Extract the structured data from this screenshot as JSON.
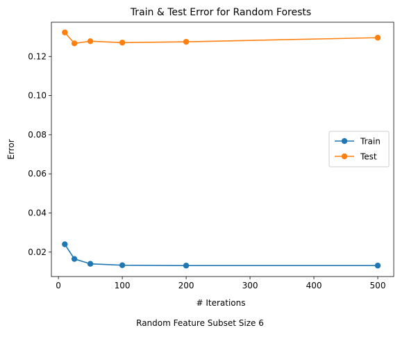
{
  "chart_data": {
    "type": "line",
    "title": "Train & Test Error for Random Forests",
    "xlabel": "# Iterations",
    "ylabel": "Error",
    "xlim": [
      -11,
      525
    ],
    "ylim": [
      0.0075,
      0.1375
    ],
    "xticks": [
      0,
      100,
      200,
      300,
      400,
      500
    ],
    "xtick_labels": [
      "0",
      "100",
      "200",
      "300",
      "400",
      "500"
    ],
    "yticks": [
      0.02,
      0.04,
      0.06,
      0.08,
      0.1,
      0.12
    ],
    "ytick_labels": [
      "0.02",
      "0.04",
      "0.06",
      "0.08",
      "0.10",
      "0.12"
    ],
    "grid": false,
    "legend_position": "center-right",
    "series": [
      {
        "name": "Train",
        "color": "#1f77b4",
        "x": [
          10,
          25,
          50,
          100,
          200,
          500
        ],
        "y": [
          0.024,
          0.0165,
          0.014,
          0.0133,
          0.0131,
          0.0131
        ]
      },
      {
        "name": "Test",
        "color": "#ff7f0e",
        "x": [
          10,
          25,
          50,
          100,
          200,
          500
        ],
        "y": [
          0.1323,
          0.1267,
          0.1278,
          0.1271,
          0.1275,
          0.1296
        ]
      }
    ]
  },
  "caption": "Random Feature Subset Size 6"
}
